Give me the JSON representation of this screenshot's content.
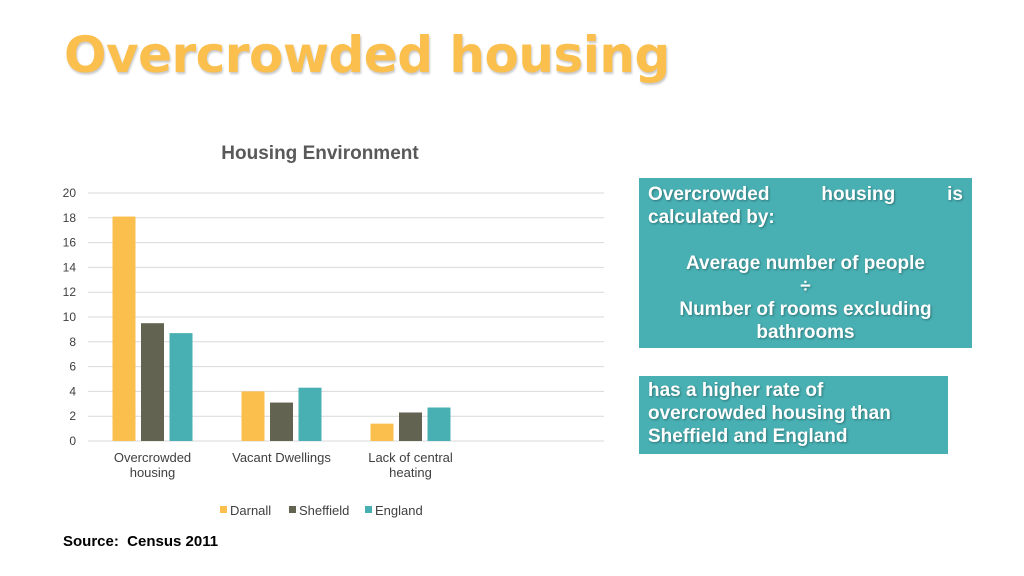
{
  "slide": {
    "title": "Overcrowded housing",
    "source": "Source:  Census 2011"
  },
  "info_box_1": {
    "lead_words": [
      "Overcrowded",
      "housing",
      "is"
    ],
    "lead_line2": "calculated by:",
    "line1": "Average number of people",
    "operator": "÷",
    "line2": "Number of rooms excluding",
    "line3": "bathrooms"
  },
  "info_box_2": {
    "line1": "has a higher rate of",
    "line2": "overcrowded housing than",
    "line3": "Sheffield and England"
  },
  "colors": {
    "title": "#fbbf4e",
    "box": "#48b0b3",
    "darnall": "#fbbf4e",
    "sheffield": "#636352",
    "england": "#48b0b3"
  },
  "chart_data": {
    "type": "bar",
    "title": "Housing Environment",
    "categories": [
      [
        "Overcrowded",
        "housing"
      ],
      [
        "Vacant Dwellings"
      ],
      [
        "Lack of central",
        "heating"
      ]
    ],
    "series": [
      {
        "name": "Darnall",
        "color": "#fbbf4e",
        "values": [
          18.1,
          4.0,
          1.4
        ]
      },
      {
        "name": "Sheffield",
        "color": "#636352",
        "values": [
          9.5,
          3.1,
          2.3
        ]
      },
      {
        "name": "England",
        "color": "#48b0b3",
        "values": [
          8.7,
          4.3,
          2.7
        ]
      }
    ],
    "ylim": [
      0,
      20
    ],
    "y_ticks": [
      "0",
      "2",
      "4",
      "6",
      "8",
      "10",
      "12",
      "14",
      "16",
      "18",
      "20"
    ],
    "grid": true,
    "legend_position": "bottom"
  }
}
